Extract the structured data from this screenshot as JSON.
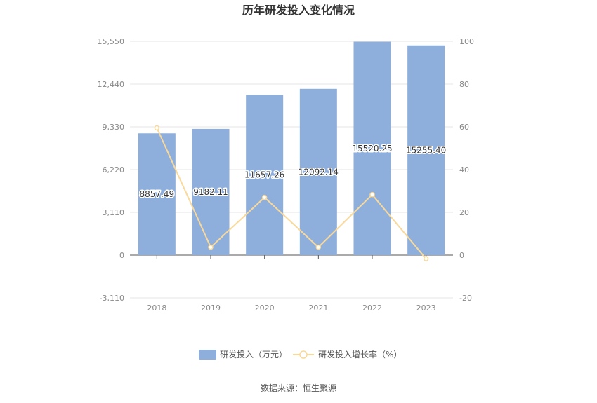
{
  "chart_data": {
    "type": "bar",
    "title": "历年研发投入变化情况",
    "categories": [
      "2018",
      "2019",
      "2020",
      "2021",
      "2022",
      "2023"
    ],
    "series": [
      {
        "name": "研发投入（万元）",
        "type": "bar",
        "axis": "left",
        "color": "#8eaedb",
        "values": [
          8857.49,
          9182.11,
          11657.26,
          12092.14,
          15520.25,
          15255.4
        ],
        "labels": [
          "8857.49",
          "9182.11",
          "11657.26",
          "12092.14",
          "15520.25",
          "15255.40"
        ]
      },
      {
        "name": "研发投入增长率（%）",
        "type": "line",
        "axis": "right",
        "color": "#f9d99b",
        "values": [
          59.5,
          3.7,
          27.0,
          3.7,
          28.3,
          -1.7
        ]
      }
    ],
    "y_left": {
      "ylim": [
        -3110,
        15550
      ],
      "ticks": [
        "-3,110",
        "0",
        "3,110",
        "6,220",
        "9,330",
        "12,440",
        "15,550"
      ],
      "tick_values": [
        -3110,
        0,
        3110,
        6220,
        9330,
        12440,
        15550
      ]
    },
    "y_right": {
      "ylim": [
        -20,
        100
      ],
      "ticks": [
        "-20",
        "0",
        "20",
        "40",
        "60",
        "80",
        "100"
      ],
      "tick_values": [
        -20,
        0,
        20,
        40,
        60,
        80,
        100
      ]
    },
    "grid": true,
    "legend": "bottom-center"
  },
  "source": "数据来源：恒生聚源"
}
